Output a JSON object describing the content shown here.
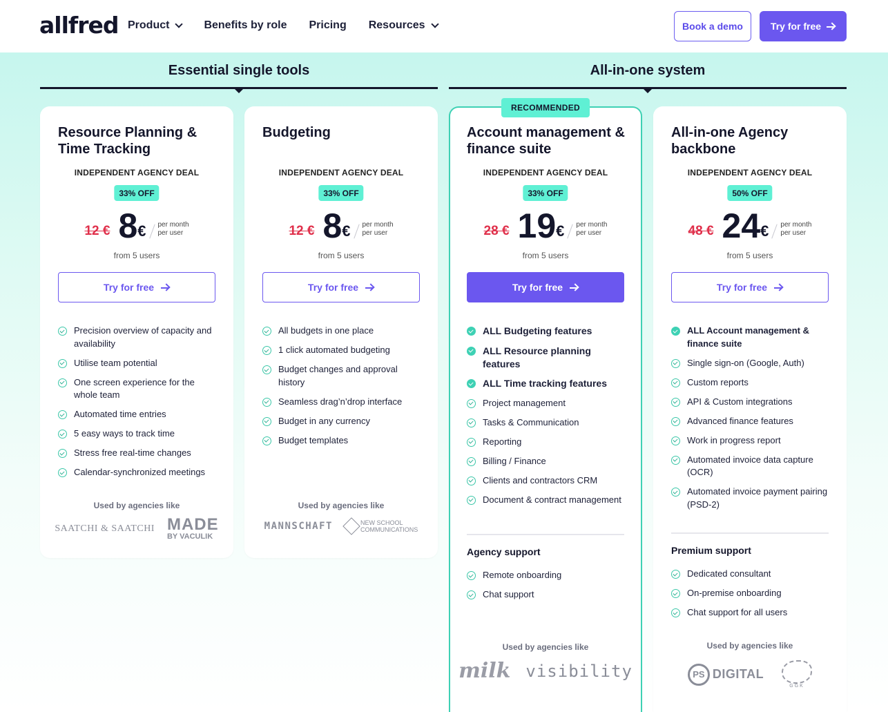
{
  "brand": {
    "logo": "allfred",
    "accent": "#6b57ef",
    "mint": "#5ff0d4",
    "sale_red": "#e0304b"
  },
  "nav": {
    "items": [
      {
        "label": "Product",
        "dropdown": true
      },
      {
        "label": "Benefits by role",
        "dropdown": false
      },
      {
        "label": "Pricing",
        "dropdown": false
      },
      {
        "label": "Resources",
        "dropdown": true
      }
    ],
    "book_demo": "Book a demo",
    "try_free": "Try for free"
  },
  "sections": {
    "left": "Essential single tools",
    "right": "All-in-one system"
  },
  "plans": [
    {
      "title": "Resource Planning & Time Tracking",
      "deal": "INDEPENDENT AGENCY DEAL",
      "discount": "33% OFF",
      "old_price": "12 €",
      "price": "8",
      "currency": "€",
      "per_month": "per month",
      "per_user": "per user",
      "from": "from 5 users",
      "cta": "Try for free",
      "features": [
        "Precision overview of capacity and availability",
        "Utilise team potential",
        "One screen experience for the whole team",
        "Automated time entries",
        "5 easy ways to track time",
        "Stress free real-time changes",
        "Calendar-synchronized meetings"
      ],
      "used_by": "Used by agencies like",
      "logos": [
        "SAATCHI & SAATCHI",
        "MADE",
        "BY VACULIK"
      ]
    },
    {
      "title": "Budgeting",
      "deal": "INDEPENDENT AGENCY DEAL",
      "discount": "33% OFF",
      "old_price": "12 €",
      "price": "8",
      "currency": "€",
      "per_month": "per month",
      "per_user": "per user",
      "from": "from 5 users",
      "cta": "Try for free",
      "features": [
        "All budgets in one place",
        "1 click automated budgeting",
        "Budget changes and approval history",
        "Seamless drag’n’drop interface",
        "Budget in any currency",
        "Budget templates"
      ],
      "used_by": "Used by agencies like",
      "logos": [
        "MANNSCHAFT",
        "NEW SCHOOL",
        "COMMUNICATIONS"
      ]
    },
    {
      "badge": "RECOMMENDED",
      "title": "Account management & finance suite",
      "deal": "INDEPENDENT AGENCY DEAL",
      "discount": "33% OFF",
      "old_price": "28 €",
      "price": "19",
      "currency": "€",
      "per_month": "per month",
      "per_user": "per user",
      "from": "from 5 users",
      "cta": "Try for free",
      "bold_features": [
        "ALL Budgeting features",
        "ALL Resource planning features",
        "ALL Time tracking features"
      ],
      "features": [
        "Project management",
        "Tasks & Communication",
        "Reporting",
        "Billing / Finance",
        "Clients and contractors CRM",
        "Document & contract management"
      ],
      "support_title": "Agency support",
      "support": [
        "Remote onboarding",
        "Chat support"
      ],
      "used_by": "Used by agencies like",
      "logos": [
        "milk",
        "visibility"
      ]
    },
    {
      "title": "All-in-one Agency backbone",
      "deal": "INDEPENDENT AGENCY DEAL",
      "discount": "50% OFF",
      "old_price": "48 €",
      "price": "24",
      "currency": "€",
      "per_month": "per month",
      "per_user": "per user",
      "from": "from 5 users",
      "cta": "Try for free",
      "bold_features": [
        "ALL Account management & finance suite"
      ],
      "features": [
        "Single sign-on (Google, Auth)",
        "Custom reports",
        "API & Custom integrations",
        "Advanced finance features",
        "Work in progress report",
        "Automated invoice data capture (OCR)",
        "Automated invoice payment pairing (PSD-2)"
      ],
      "support_title": "Premium support",
      "support": [
        "Dedicated consultant",
        "On-premise onboarding",
        "Chat support for all users"
      ],
      "used_by": "Used by agencies like",
      "logos": [
        "PS",
        "DIGITAL",
        "GGK"
      ]
    }
  ]
}
